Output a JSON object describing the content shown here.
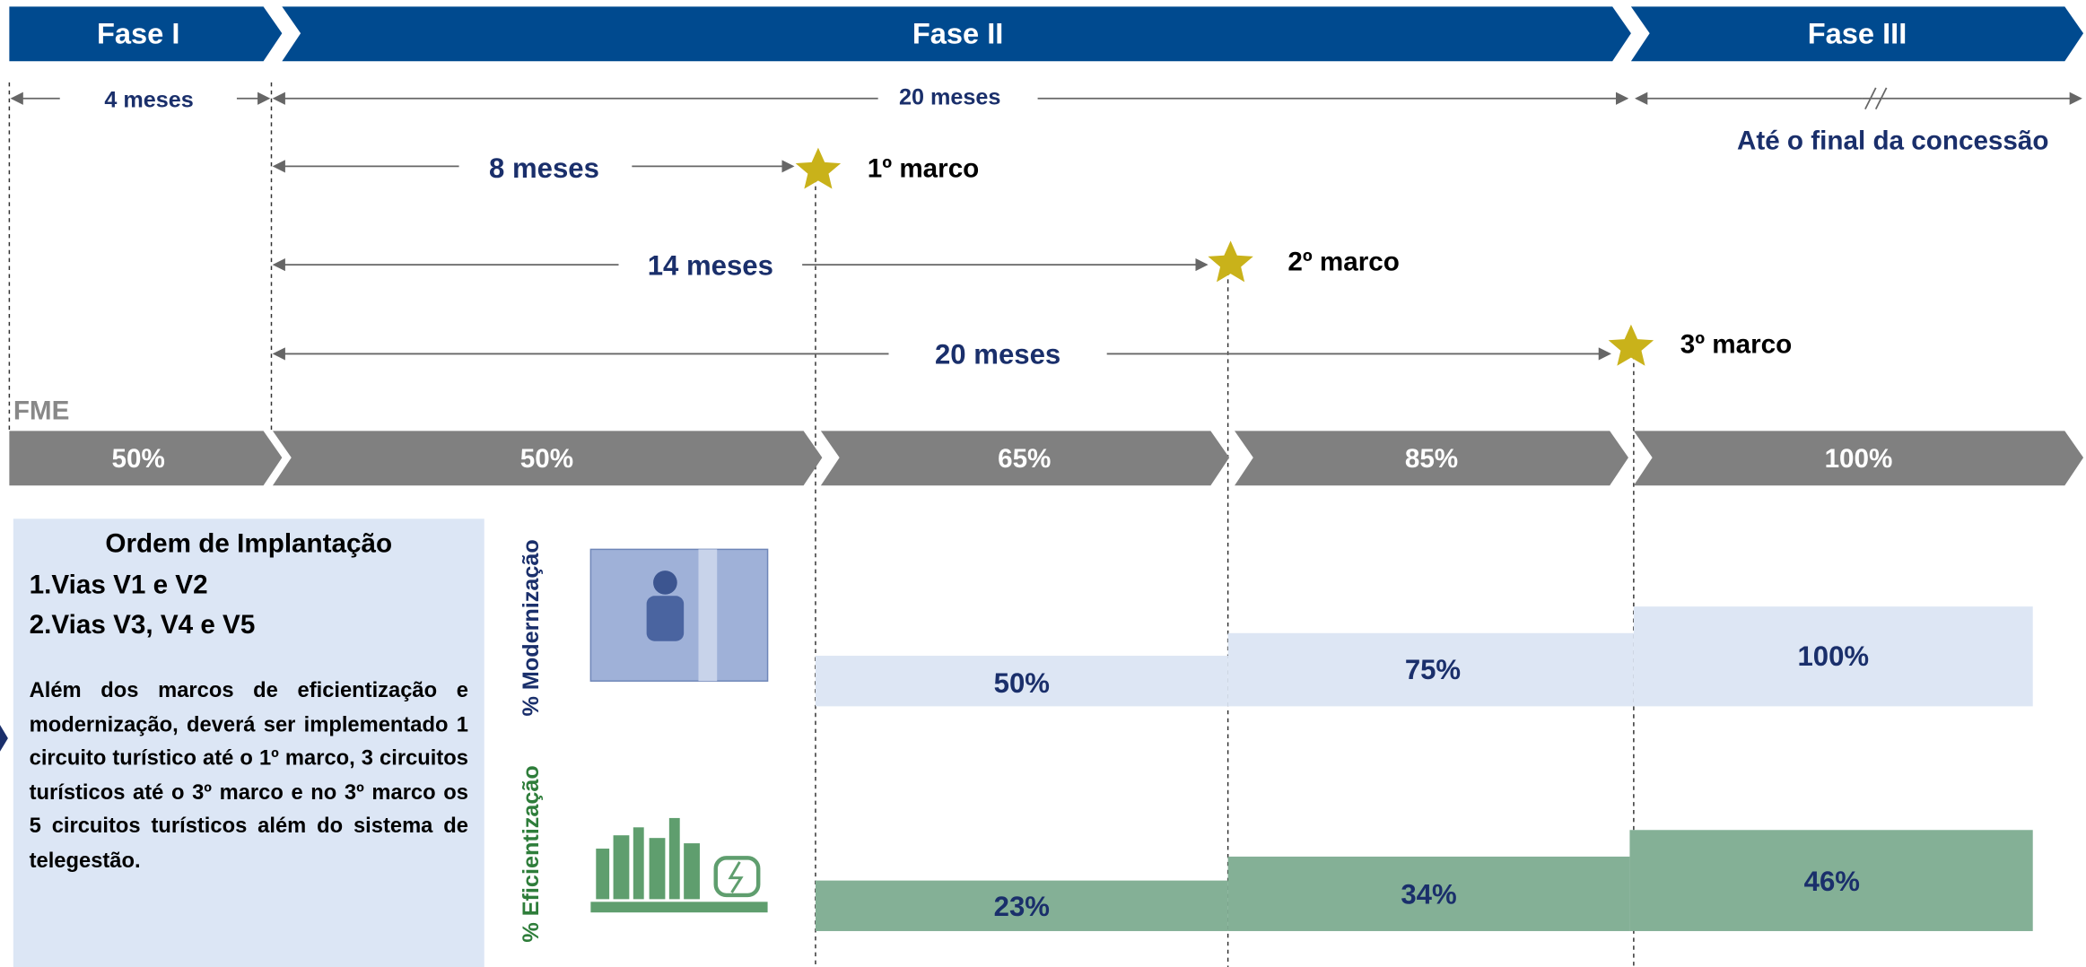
{
  "phases": [
    "Fase I",
    "Fase II",
    "Fase III"
  ],
  "durations": [
    "4 meses",
    "20 meses",
    "Até o final da concessão"
  ],
  "milestones": [
    {
      "duration": "8 meses",
      "label": "1º marco"
    },
    {
      "duration": "14 meses",
      "label": "2º marco"
    },
    {
      "duration": "20 meses",
      "label": "3º marco"
    }
  ],
  "fme": {
    "label": "FME",
    "steps": [
      "50%",
      "50%",
      "65%",
      "85%",
      "100%"
    ]
  },
  "panel": {
    "title": "Ordem de Implantação",
    "items": [
      "1.Vias V1 e V2",
      "2.Vias V3, V4 e V5"
    ],
    "note": "Além dos marcos de eficientização e modernização, deverá ser implementado 1 circuito turístico até o 1º marco, 3 circuitos turísticos até o 3º marco e no 3º marco os 5 circuitos turísticos além do sistema de telegestão."
  },
  "modernizacao": {
    "label": "% Modernização",
    "values": [
      "50%",
      "75%",
      "100%"
    ]
  },
  "eficientizacao": {
    "label": "% Eficientização",
    "values": [
      "23%",
      "34%",
      "46%"
    ]
  }
}
